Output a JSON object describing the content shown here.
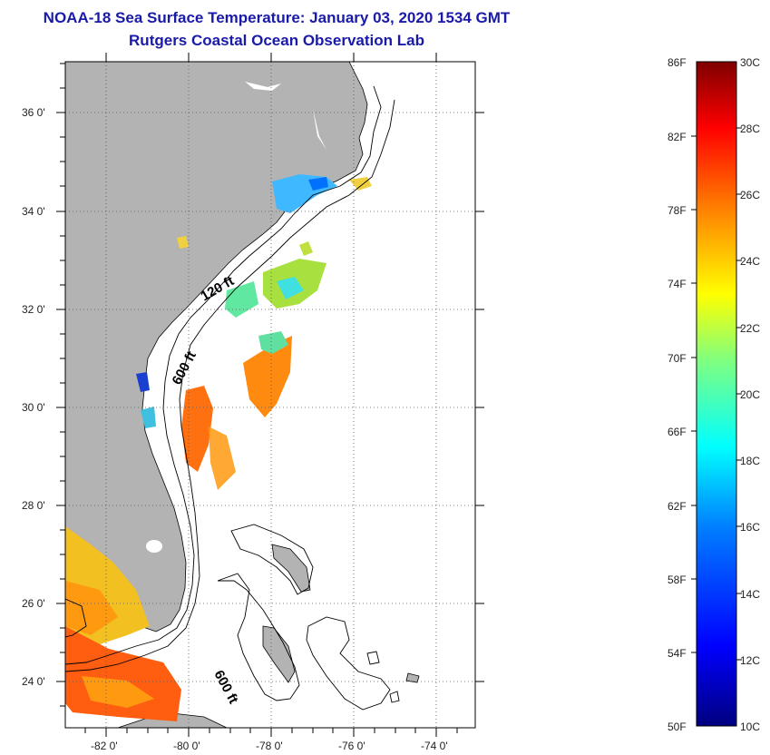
{
  "header": {
    "title": "NOAA-18 Sea Surface Temperature:  January 03, 2020 1534 GMT",
    "subtitle": "Rutgers Coastal Ocean Observation Lab"
  },
  "map": {
    "lon_range": [
      -83,
      -73
    ],
    "lat_range": [
      23,
      37
    ],
    "lat_ticks": [
      "36 0'",
      "34 0'",
      "32 0'",
      "30 0'",
      "28 0'",
      "26 0'",
      "24 0'"
    ],
    "lon_ticks": [
      "-82 0'",
      "-80 0'",
      "-78 0'",
      "-76 0'",
      "-74 0'"
    ],
    "contour_labels": [
      "120 ft",
      "600 ft",
      "600 ft"
    ],
    "land_color": "#b3b3b3"
  },
  "colorbar": {
    "fahrenheit": [
      "86F",
      "82F",
      "78F",
      "74F",
      "70F",
      "66F",
      "62F",
      "58F",
      "54F",
      "50F"
    ],
    "celsius": [
      "30C",
      "28C",
      "26C",
      "24C",
      "22C",
      "20C",
      "18C",
      "16C",
      "14C",
      "12C",
      "10C"
    ],
    "colors": [
      "#00007f",
      "#0000ff",
      "#007fff",
      "#00ffff",
      "#7fff7f",
      "#ffff00",
      "#ff7f00",
      "#ff0000",
      "#7f0000"
    ]
  }
}
